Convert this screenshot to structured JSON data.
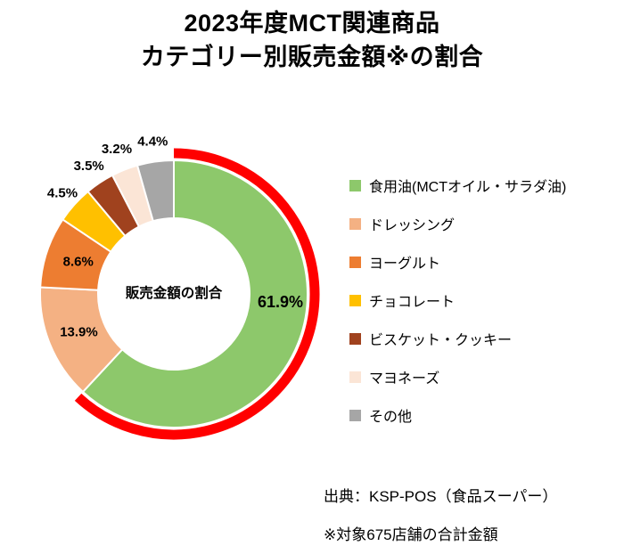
{
  "title": {
    "line1": "2023年度MCT関連商品",
    "line2": "カテゴリー別販売金額※の割合"
  },
  "chart_data": {
    "type": "pie",
    "subtype": "donut",
    "title": "2023年度MCT関連商品 カテゴリー別販売金額※の割合",
    "center_label": "販売金額の割合",
    "categories": [
      "食用油(MCTオイル・サラダ油)",
      "ドレッシング",
      "ヨーグルト",
      "チョコレート",
      "ビスケット・クッキー",
      "マヨネーズ",
      "その他"
    ],
    "values": [
      61.9,
      13.9,
      8.6,
      4.5,
      3.5,
      3.2,
      4.4
    ],
    "labels": [
      "61.9%",
      "13.9%",
      "8.6%",
      "4.5%",
      "3.5%",
      "3.2%",
      "4.4%"
    ],
    "colors": [
      "#8DC86B",
      "#F4B183",
      "#ED7D31",
      "#FFC000",
      "#A0421E",
      "#FBE5D6",
      "#A6A6A6"
    ],
    "start_angle_deg": 0,
    "direction": "clockwise",
    "legend_position": "right",
    "highlight": {
      "slice_index": 0,
      "ring_color": "#FF0000",
      "label_color": "#FF0000"
    }
  },
  "source": {
    "line1": "出典：KSP-POS（食品スーパー）",
    "line2": "※対象675店舗の合計金額"
  }
}
